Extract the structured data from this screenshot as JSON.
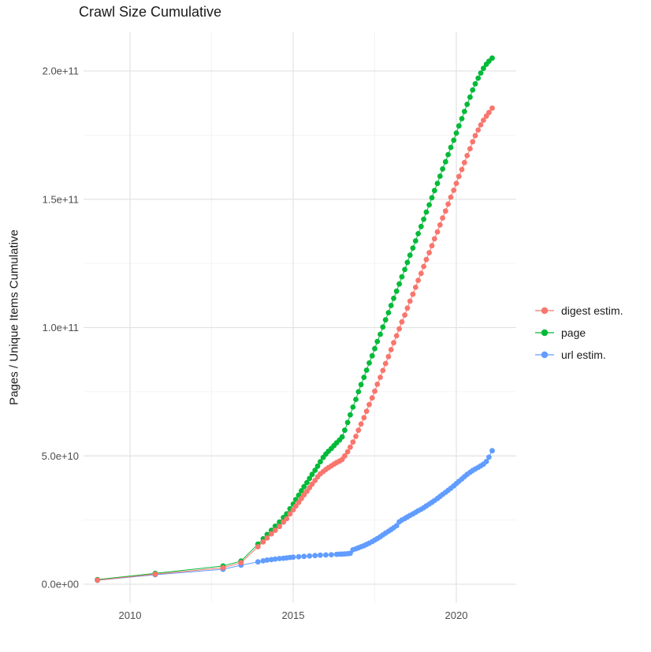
{
  "chart_data": {
    "type": "line",
    "title": "Crawl Size Cumulative",
    "xlabel": "",
    "ylabel": "Pages / Unique Items Cumulative",
    "values_unit": "1e9 (points stored as [year, value_in_billions])",
    "x_ticks": [
      {
        "label": "2010",
        "year": 2010
      },
      {
        "label": "2015",
        "year": 2015
      },
      {
        "label": "2020",
        "year": 2020
      }
    ],
    "x_minor_ticks": [
      2012.5,
      2017.5
    ],
    "y_ticks": [
      {
        "label": "0.0e+00",
        "value": 0
      },
      {
        "label": "5.0e+10",
        "value": 50
      },
      {
        "label": "1.0e+11",
        "value": 100
      },
      {
        "label": "1.5e+11",
        "value": 150
      },
      {
        "label": "2.0e+11",
        "value": 200
      }
    ],
    "y_minor_ticks": [
      25,
      75,
      125,
      175
    ],
    "x_range": [
      2008.6,
      2021.85
    ],
    "y_range_e9": [
      -7,
      215
    ],
    "grid": "major+minor, no axis lines, white panel",
    "legend_position": "right",
    "legend_order": [
      "digest estim.",
      "page",
      "url estim."
    ],
    "series": [
      {
        "name": "url estim.",
        "color": "#619CFF",
        "points": [
          [
            2009.0,
            1.5
          ],
          [
            2010.77,
            3.7
          ],
          [
            2012.85,
            5.8
          ],
          [
            2013.4,
            7.4
          ],
          [
            2013.92,
            8.7
          ],
          [
            2014.08,
            9.1
          ],
          [
            2014.2,
            9.4
          ],
          [
            2014.33,
            9.6
          ],
          [
            2014.45,
            9.8
          ],
          [
            2014.58,
            10.0
          ],
          [
            2014.7,
            10.1
          ],
          [
            2014.8,
            10.25
          ],
          [
            2014.9,
            10.4
          ],
          [
            2015.0,
            10.55
          ],
          [
            2015.17,
            10.7
          ],
          [
            2015.33,
            10.85
          ],
          [
            2015.5,
            11.0
          ],
          [
            2015.67,
            11.15
          ],
          [
            2015.83,
            11.3
          ],
          [
            2016.0,
            11.4
          ],
          [
            2016.17,
            11.5
          ],
          [
            2016.33,
            11.65
          ],
          [
            2016.42,
            11.7
          ],
          [
            2016.5,
            11.75
          ],
          [
            2016.58,
            11.8
          ],
          [
            2016.67,
            11.9
          ],
          [
            2016.75,
            12.0
          ],
          [
            2016.83,
            13.4
          ],
          [
            2016.92,
            13.8
          ],
          [
            2017.0,
            14.2
          ],
          [
            2017.08,
            14.6
          ],
          [
            2017.17,
            15.0
          ],
          [
            2017.25,
            15.5
          ],
          [
            2017.33,
            16.0
          ],
          [
            2017.42,
            16.6
          ],
          [
            2017.5,
            17.2
          ],
          [
            2017.58,
            17.8
          ],
          [
            2017.67,
            18.5
          ],
          [
            2017.75,
            19.2
          ],
          [
            2017.83,
            19.9
          ],
          [
            2017.92,
            20.6
          ],
          [
            2018.0,
            21.3
          ],
          [
            2018.08,
            22.0
          ],
          [
            2018.17,
            22.8
          ],
          [
            2018.25,
            24.3
          ],
          [
            2018.33,
            25.0
          ],
          [
            2018.42,
            25.6
          ],
          [
            2018.5,
            26.2
          ],
          [
            2018.58,
            26.8
          ],
          [
            2018.67,
            27.4
          ],
          [
            2018.75,
            28.0
          ],
          [
            2018.83,
            28.6
          ],
          [
            2018.92,
            29.2
          ],
          [
            2019.0,
            29.8
          ],
          [
            2019.08,
            30.5
          ],
          [
            2019.17,
            31.2
          ],
          [
            2019.25,
            31.9
          ],
          [
            2019.33,
            32.6
          ],
          [
            2019.42,
            33.4
          ],
          [
            2019.5,
            34.2
          ],
          [
            2019.58,
            35.0
          ],
          [
            2019.67,
            35.8
          ],
          [
            2019.75,
            36.6
          ],
          [
            2019.83,
            37.4
          ],
          [
            2019.92,
            38.3
          ],
          [
            2020.0,
            39.2
          ],
          [
            2020.08,
            40.1
          ],
          [
            2020.17,
            41.0
          ],
          [
            2020.25,
            41.9
          ],
          [
            2020.33,
            42.8
          ],
          [
            2020.42,
            43.6
          ],
          [
            2020.5,
            44.3
          ],
          [
            2020.58,
            44.9
          ],
          [
            2020.67,
            45.5
          ],
          [
            2020.75,
            46.1
          ],
          [
            2020.83,
            46.8
          ],
          [
            2020.92,
            47.8
          ],
          [
            2021.0,
            49.5
          ],
          [
            2021.1,
            52.0
          ]
        ]
      },
      {
        "name": "page",
        "color": "#00BA38",
        "points": [
          [
            2009.0,
            1.8
          ],
          [
            2010.77,
            4.2
          ],
          [
            2012.85,
            7.1
          ],
          [
            2013.4,
            9.0
          ],
          [
            2013.92,
            15.6
          ],
          [
            2014.08,
            17.7
          ],
          [
            2014.2,
            19.4
          ],
          [
            2014.33,
            21.0
          ],
          [
            2014.45,
            22.6
          ],
          [
            2014.58,
            24.2
          ],
          [
            2014.7,
            26.0
          ],
          [
            2014.8,
            27.4
          ],
          [
            2014.9,
            29.4
          ],
          [
            2015.0,
            31.2
          ],
          [
            2015.08,
            33.0
          ],
          [
            2015.17,
            34.7
          ],
          [
            2015.25,
            36.4
          ],
          [
            2015.33,
            38.0
          ],
          [
            2015.42,
            39.6
          ],
          [
            2015.5,
            41.2
          ],
          [
            2015.58,
            42.8
          ],
          [
            2015.67,
            44.4
          ],
          [
            2015.75,
            46.0
          ],
          [
            2015.83,
            47.7
          ],
          [
            2015.92,
            49.4
          ],
          [
            2016.0,
            50.7
          ],
          [
            2016.08,
            51.8
          ],
          [
            2016.17,
            52.9
          ],
          [
            2016.25,
            54.0
          ],
          [
            2016.33,
            55.1
          ],
          [
            2016.42,
            56.2
          ],
          [
            2016.5,
            57.4
          ],
          [
            2016.58,
            60.0
          ],
          [
            2016.67,
            63.0
          ],
          [
            2016.75,
            66.0
          ],
          [
            2016.83,
            69.0
          ],
          [
            2016.92,
            72.0
          ],
          [
            2017.0,
            75.0
          ],
          [
            2017.08,
            77.8
          ],
          [
            2017.17,
            80.6
          ],
          [
            2017.25,
            83.4
          ],
          [
            2017.33,
            86.2
          ],
          [
            2017.42,
            89.0
          ],
          [
            2017.5,
            91.8
          ],
          [
            2017.58,
            94.6
          ],
          [
            2017.67,
            97.4
          ],
          [
            2017.75,
            100.2
          ],
          [
            2017.83,
            103.0
          ],
          [
            2017.92,
            105.8
          ],
          [
            2018.0,
            108.6
          ],
          [
            2018.08,
            111.4
          ],
          [
            2018.17,
            114.2
          ],
          [
            2018.25,
            117.0
          ],
          [
            2018.33,
            119.8
          ],
          [
            2018.42,
            122.6
          ],
          [
            2018.5,
            125.4
          ],
          [
            2018.58,
            128.2
          ],
          [
            2018.67,
            131.0
          ],
          [
            2018.75,
            133.8
          ],
          [
            2018.83,
            136.6
          ],
          [
            2018.92,
            139.4
          ],
          [
            2019.0,
            142.2
          ],
          [
            2019.08,
            145.0
          ],
          [
            2019.17,
            147.8
          ],
          [
            2019.25,
            150.6
          ],
          [
            2019.33,
            153.4
          ],
          [
            2019.42,
            156.2
          ],
          [
            2019.5,
            159.0
          ],
          [
            2019.58,
            161.8
          ],
          [
            2019.67,
            164.6
          ],
          [
            2019.75,
            167.4
          ],
          [
            2019.83,
            170.2
          ],
          [
            2019.92,
            173.0
          ],
          [
            2020.0,
            175.8
          ],
          [
            2020.08,
            178.6
          ],
          [
            2020.17,
            181.4
          ],
          [
            2020.25,
            184.2
          ],
          [
            2020.33,
            187.0
          ],
          [
            2020.42,
            189.8
          ],
          [
            2020.5,
            192.6
          ],
          [
            2020.58,
            195.0
          ],
          [
            2020.67,
            197.2
          ],
          [
            2020.75,
            199.2
          ],
          [
            2020.83,
            201.0
          ],
          [
            2020.92,
            202.6
          ],
          [
            2021.0,
            203.8
          ],
          [
            2021.1,
            205.0
          ]
        ]
      },
      {
        "name": "digest estim.",
        "color": "#F8766D",
        "points": [
          [
            2009.0,
            1.6
          ],
          [
            2010.77,
            3.9
          ],
          [
            2012.85,
            6.4
          ],
          [
            2013.4,
            8.4
          ],
          [
            2013.92,
            14.6
          ],
          [
            2014.08,
            16.5
          ],
          [
            2014.2,
            18.0
          ],
          [
            2014.33,
            19.6
          ],
          [
            2014.45,
            21.0
          ],
          [
            2014.58,
            22.5
          ],
          [
            2014.7,
            24.2
          ],
          [
            2014.8,
            25.5
          ],
          [
            2014.9,
            27.4
          ],
          [
            2015.0,
            29.0
          ],
          [
            2015.08,
            30.4
          ],
          [
            2015.17,
            31.9
          ],
          [
            2015.25,
            33.4
          ],
          [
            2015.33,
            34.8
          ],
          [
            2015.42,
            36.2
          ],
          [
            2015.5,
            37.6
          ],
          [
            2015.58,
            39.0
          ],
          [
            2015.67,
            40.4
          ],
          [
            2015.75,
            41.8
          ],
          [
            2015.83,
            43.0
          ],
          [
            2015.92,
            43.9
          ],
          [
            2016.0,
            44.7
          ],
          [
            2016.08,
            45.4
          ],
          [
            2016.17,
            46.1
          ],
          [
            2016.25,
            46.8
          ],
          [
            2016.33,
            47.4
          ],
          [
            2016.42,
            48.0
          ],
          [
            2016.5,
            48.6
          ],
          [
            2016.58,
            50.0
          ],
          [
            2016.67,
            51.6
          ],
          [
            2016.75,
            53.4
          ],
          [
            2016.83,
            55.4
          ],
          [
            2016.92,
            57.6
          ],
          [
            2017.0,
            60.0
          ],
          [
            2017.08,
            62.4
          ],
          [
            2017.17,
            64.9
          ],
          [
            2017.25,
            67.4
          ],
          [
            2017.33,
            70.0
          ],
          [
            2017.42,
            72.6
          ],
          [
            2017.5,
            75.2
          ],
          [
            2017.58,
            77.9
          ],
          [
            2017.67,
            80.6
          ],
          [
            2017.75,
            83.3
          ],
          [
            2017.83,
            86.0
          ],
          [
            2017.92,
            88.7
          ],
          [
            2018.0,
            91.4
          ],
          [
            2018.08,
            94.1
          ],
          [
            2018.17,
            96.8
          ],
          [
            2018.25,
            99.5
          ],
          [
            2018.33,
            102.2
          ],
          [
            2018.42,
            104.9
          ],
          [
            2018.5,
            107.6
          ],
          [
            2018.58,
            110.3
          ],
          [
            2018.67,
            113.0
          ],
          [
            2018.75,
            115.7
          ],
          [
            2018.83,
            118.4
          ],
          [
            2018.92,
            121.1
          ],
          [
            2019.0,
            123.8
          ],
          [
            2019.08,
            126.5
          ],
          [
            2019.17,
            129.2
          ],
          [
            2019.25,
            131.9
          ],
          [
            2019.33,
            134.6
          ],
          [
            2019.42,
            137.3
          ],
          [
            2019.5,
            140.0
          ],
          [
            2019.58,
            142.7
          ],
          [
            2019.67,
            145.4
          ],
          [
            2019.75,
            148.1
          ],
          [
            2019.83,
            150.8
          ],
          [
            2019.92,
            153.5
          ],
          [
            2020.0,
            156.2
          ],
          [
            2020.08,
            158.9
          ],
          [
            2020.17,
            161.6
          ],
          [
            2020.25,
            164.3
          ],
          [
            2020.33,
            167.0
          ],
          [
            2020.42,
            169.7
          ],
          [
            2020.5,
            172.4
          ],
          [
            2020.58,
            174.8
          ],
          [
            2020.67,
            177.0
          ],
          [
            2020.75,
            179.0
          ],
          [
            2020.83,
            180.8
          ],
          [
            2020.92,
            182.4
          ],
          [
            2021.0,
            183.8
          ],
          [
            2021.1,
            185.5
          ]
        ]
      }
    ],
    "colors": {
      "digest_estim": "#F8766D",
      "page": "#00BA38",
      "url_estim": "#619CFF",
      "grid_major": "#e3e3e3",
      "grid_minor": "#f0f0f0",
      "tick_text": "#4d4d4d"
    }
  }
}
